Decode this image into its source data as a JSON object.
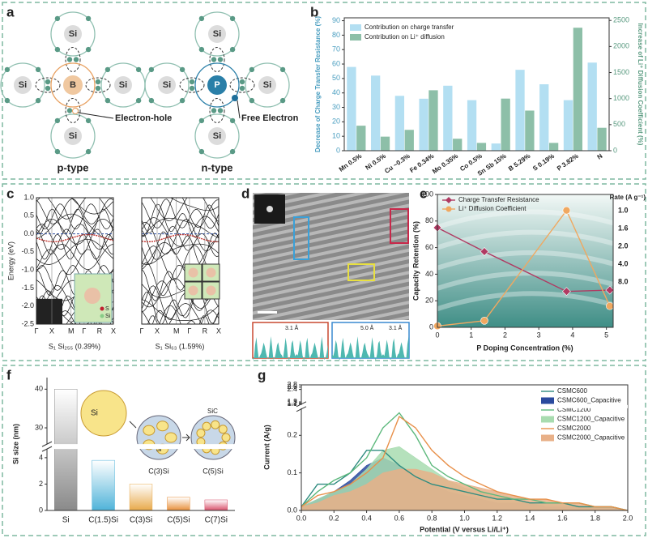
{
  "panels": {
    "a": {
      "letter": "a",
      "p_atoms": [
        "Si",
        "Si",
        "Si",
        "Si"
      ],
      "p_center": "B",
      "hole": "Electron-hole",
      "p_type": "p-type",
      "n_atoms": [
        "Si",
        "Si",
        "Si",
        "Si"
      ],
      "n_center": "P",
      "electron": "Free Electron",
      "n_type": "n-type"
    },
    "c": {
      "letter": "c",
      "ylabel": "Energy (eV)",
      "yticks": [
        "1.0",
        "0.5",
        "0.0",
        "-0.5",
        "-1.0",
        "-1.5",
        "-2.0",
        "-2.5"
      ],
      "kpoints": [
        "Γ",
        "X",
        "M",
        "Γ",
        "R",
        "X"
      ],
      "caption_left": "S₁ Si₂₅₅ (0.39%)",
      "caption_right": "S₁ Si₆₃ (1.59%)",
      "legend": [
        "S",
        "Si"
      ]
    },
    "d": {
      "letter": "d",
      "spacings": [
        "3.1 Å",
        "5.0 Å",
        "3.1 Å"
      ]
    },
    "f": {
      "inset": [
        "Si",
        "Si",
        "SiC",
        "C(3)Si",
        "C(5)Si"
      ]
    }
  },
  "chart_data": [
    {
      "panel": "b",
      "type": "bar",
      "categories": [
        "Mn 0.5%",
        "Ni 0.5%",
        "Cu ~0.3%",
        "Fe 0.34%",
        "Mo 0.35%",
        "Co 0.5%",
        "Sn Sb 15%",
        "B 5.29%",
        "S 0.19%",
        "P 3.82%",
        "N"
      ],
      "ylabel": "Decrease of Charge Transfer Resistance (%)",
      "y2label": "Increase of Li⁺ Diffusion Coefficient (%)",
      "ylim": [
        0,
        92
      ],
      "yticks": [
        0,
        10,
        20,
        30,
        40,
        50,
        60,
        70,
        80,
        90
      ],
      "y2lim": [
        0,
        2550
      ],
      "y2ticks": [
        0,
        500,
        1000,
        1500,
        2000,
        2500
      ],
      "legend": "upper left",
      "series": [
        {
          "name": "Contribution on charge transfer",
          "color": "#b3dff2",
          "values": [
            58,
            52,
            38,
            36,
            45,
            35,
            5,
            56,
            46,
            35,
            61
          ]
        },
        {
          "name": "Contribution on Li⁺ diffusion",
          "color": "#8dbfa8",
          "axis": "y2",
          "values": [
            480,
            270,
            400,
            1160,
            230,
            150,
            1000,
            770,
            150,
            2360,
            440
          ]
        }
      ]
    },
    {
      "panel": "e",
      "type": "line",
      "xlabel": "P Doping Concentration (%)",
      "ylabel": "Capacity Retention (%)",
      "x": [
        0,
        1.39,
        3.82,
        5.1
      ],
      "xlim": [
        0,
        5.2
      ],
      "xticks": [
        0,
        1,
        2,
        3,
        4,
        5
      ],
      "ylim": [
        0,
        100
      ],
      "yticks": [
        0,
        20,
        40,
        60,
        80,
        100
      ],
      "legend": "upper left",
      "right_title": "Rate (A g⁻¹)",
      "right_labels": [
        "1.0",
        "1.6",
        "2.0",
        "4.0",
        "8.0"
      ],
      "series": [
        {
          "name": "Charge Transfer Resistance",
          "color": "#b03a62",
          "marker": "diamond",
          "values": [
            75,
            57,
            27,
            28
          ]
        },
        {
          "name": "Li⁺ Diffusion Coefficient",
          "color": "#f0a860",
          "marker": "circle",
          "values": [
            1,
            5,
            88,
            16
          ]
        }
      ]
    },
    {
      "panel": "f",
      "type": "bar",
      "ylabel": "Si size (nm)",
      "categories": [
        "Si",
        "C(1.5)Si",
        "C(3)Si",
        "C(5)Si",
        "C(7)Si"
      ],
      "values": [
        40,
        3.8,
        2.0,
        1.0,
        0.8
      ],
      "colors": [
        "#8a8a8a",
        "#4fb3d9",
        "#e8a94a",
        "#e88f3a",
        "#d8506a"
      ],
      "ylim": [
        0,
        43
      ],
      "ybreak": [
        4.6,
        26
      ],
      "yticks": [
        0,
        2,
        4,
        30,
        40
      ]
    },
    {
      "panel": "g",
      "type": "line",
      "xlabel": "Potential (V versus Li/Li⁺)",
      "ylabel": "Current (A/g)",
      "x": [
        0,
        0.1,
        0.2,
        0.3,
        0.4,
        0.5,
        0.6,
        0.7,
        0.8,
        0.9,
        1,
        1.1,
        1.2,
        1.3,
        1.4,
        1.5,
        1.6,
        1.7,
        1.8,
        1.9,
        2
      ],
      "xlim": [
        0,
        2
      ],
      "xticks": [
        {
          "value": 0,
          "label": "0.0"
        },
        0.2,
        0.4,
        0.6,
        0.8,
        {
          "value": 1,
          "label": "1.0"
        },
        1.2,
        1.4,
        1.6,
        1.8,
        {
          "value": 2,
          "label": "2.0"
        }
      ],
      "ylim": [
        0,
        2.8
      ],
      "ybreak": [
        0.27,
        1.1
      ],
      "yticks": [
        {
          "value": 0,
          "label": "0.0"
        },
        0.1,
        0.2,
        1.1,
        1.2,
        1.3,
        2.4,
        2.6,
        2.8
      ],
      "legend": "upper right",
      "series": [
        {
          "name": "CSMC600",
          "color": "#2f8c80",
          "values": [
            0.01,
            0.07,
            0.07,
            0.1,
            0.16,
            0.16,
            0.12,
            0.09,
            0.07,
            0.06,
            0.05,
            0.04,
            0.03,
            0.03,
            0.02,
            0.02,
            0.02,
            0.01,
            0.01,
            0.01,
            0
          ]
        },
        {
          "name": "CSMC600_Capacitive",
          "color": "#2a4a9e",
          "fill": true,
          "values": [
            0.01,
            0.03,
            0.05,
            0.08,
            0.12,
            0.14,
            0.12,
            0.09,
            0.07,
            0.05,
            0.04,
            0.03,
            0.02,
            0.02,
            0.02,
            0.01,
            0.01,
            0.01,
            0.01,
            0.01,
            0
          ]
        },
        {
          "name": "CSMC1200",
          "color": "#5cb87c",
          "values": [
            0.01,
            0.05,
            0.08,
            0.1,
            0.14,
            0.22,
            0.26,
            0.2,
            0.12,
            0.09,
            0.07,
            0.05,
            0.04,
            0.03,
            0.03,
            0.02,
            0.02,
            0.02,
            0.01,
            0.01,
            0
          ]
        },
        {
          "name": "CSMC1200_Capacitive",
          "color": "#a8dcb0",
          "fill": true,
          "values": [
            0.01,
            0.03,
            0.05,
            0.07,
            0.11,
            0.16,
            0.17,
            0.14,
            0.11,
            0.08,
            0.06,
            0.05,
            0.04,
            0.03,
            0.02,
            0.02,
            0.02,
            0.01,
            0.01,
            0.01,
            0
          ]
        },
        {
          "name": "CSMC2000",
          "color": "#e8904a",
          "values": [
            0.01,
            0.04,
            0.05,
            0.07,
            0.1,
            0.14,
            0.25,
            0.22,
            0.16,
            0.12,
            0.09,
            0.07,
            0.05,
            0.04,
            0.03,
            0.03,
            0.02,
            0.02,
            0.01,
            0.01,
            0
          ]
        },
        {
          "name": "CSMC2000_Capacitive",
          "color": "#e8b088",
          "fill": true,
          "values": [
            0.01,
            0.02,
            0.04,
            0.05,
            0.07,
            0.1,
            0.11,
            0.11,
            0.1,
            0.08,
            0.07,
            0.06,
            0.05,
            0.04,
            0.03,
            0.03,
            0.02,
            0.02,
            0.01,
            0.01,
            0
          ]
        }
      ]
    }
  ]
}
